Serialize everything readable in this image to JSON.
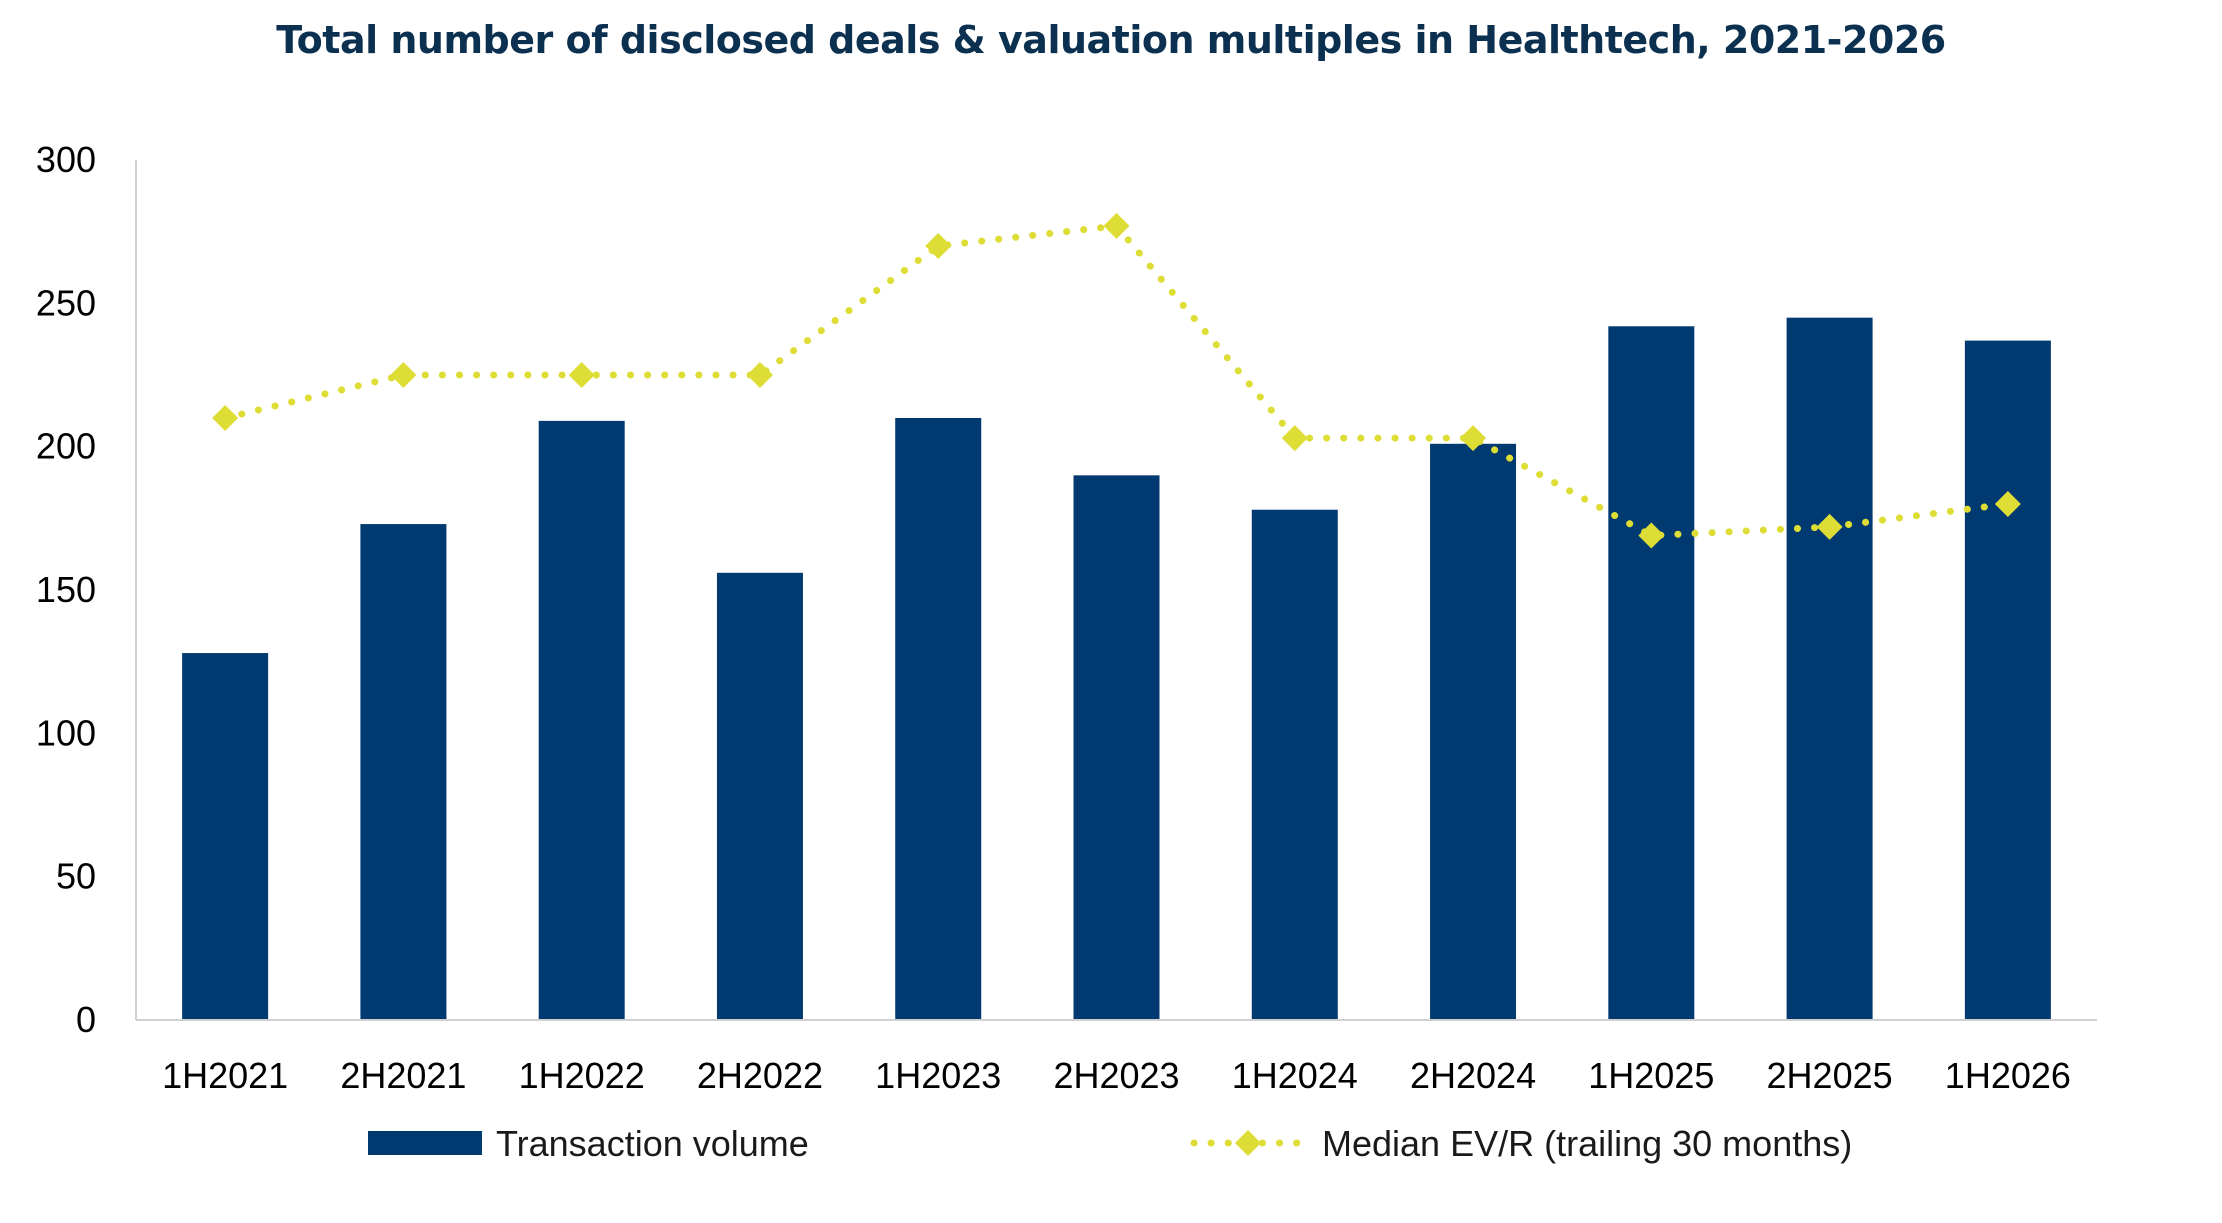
{
  "chart_data": {
    "type": "bar",
    "title": "Total number of disclosed deals & valuation multiples in Healthtech, 2021-2026",
    "categories": [
      "1H2021",
      "2H2021",
      "1H2022",
      "2H2022",
      "1H2023",
      "2H2023",
      "1H2024",
      "2H2024",
      "1H2025",
      "2H2025",
      "1H2026"
    ],
    "series": [
      {
        "name": "Transaction volume",
        "type": "bar",
        "color": "#003a70",
        "values": [
          128,
          173,
          209,
          156,
          210,
          190,
          178,
          201,
          242,
          245,
          237
        ]
      },
      {
        "name": "Median EV/R (trailing 30 months)",
        "type": "line",
        "line_style": "dotted",
        "marker": "diamond",
        "color": "#dedd36",
        "values": [
          210,
          225,
          225,
          225,
          270,
          277,
          203,
          203,
          169,
          172,
          180
        ]
      }
    ],
    "ylim": [
      0,
      300
    ],
    "yticks": [
      0,
      50,
      100,
      150,
      200,
      250,
      300
    ],
    "grid": false,
    "legend_position": "bottom"
  }
}
